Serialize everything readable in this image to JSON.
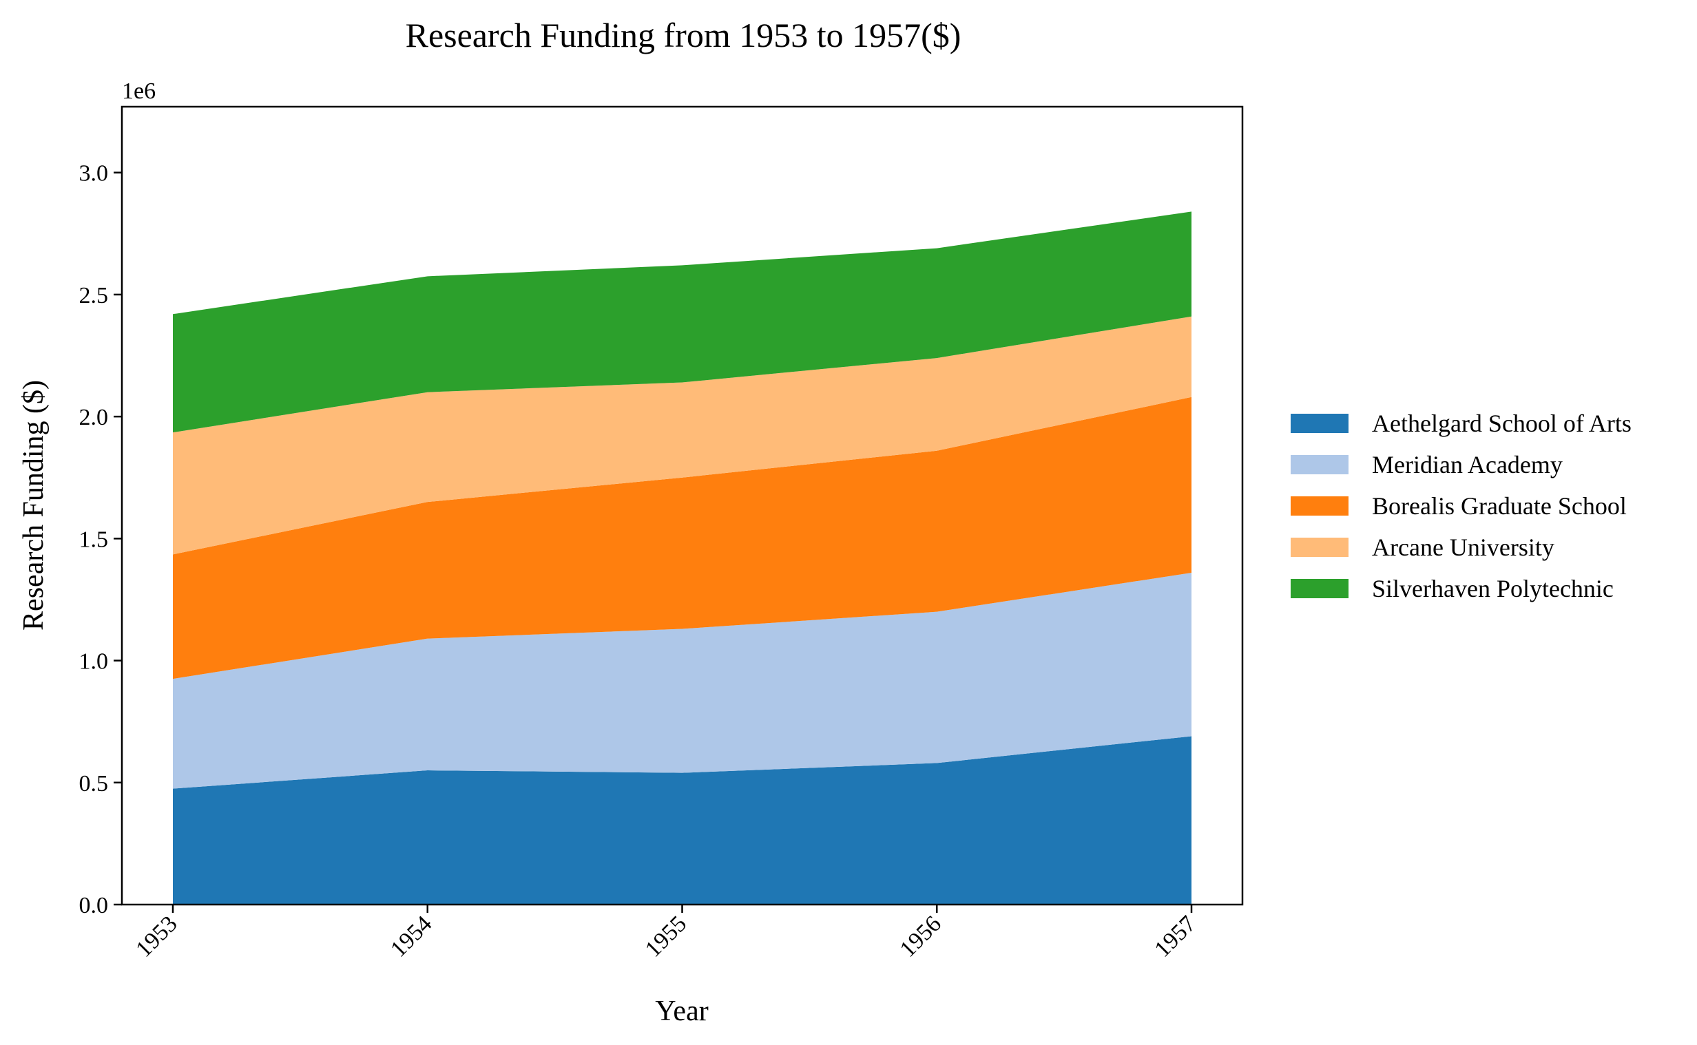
{
  "chart_data": {
    "type": "area",
    "stacked": true,
    "title": "Research Funding from 1953 to 1957($)",
    "xlabel": "Year",
    "ylabel": "Research Funding ($)",
    "y_offset_label": "1e6",
    "x": [
      "1953",
      "1954",
      "1955",
      "1956",
      "1957"
    ],
    "ylim": [
      0,
      3270000
    ],
    "yticks": [
      0,
      500000,
      1000000,
      1500000,
      2000000,
      2500000,
      3000000
    ],
    "ytick_labels": [
      "0.0",
      "0.5",
      "1.0",
      "1.5",
      "2.0",
      "2.5",
      "3.0"
    ],
    "grid": false,
    "legend_position": "right",
    "series": [
      {
        "name": "Aethelgard School of Arts",
        "color": "#1f77b4",
        "values": [
          475000,
          550000,
          540000,
          580000,
          690000
        ]
      },
      {
        "name": "Meridian Academy",
        "color": "#aec7e8",
        "values": [
          450000,
          540000,
          590000,
          620000,
          670000
        ]
      },
      {
        "name": "Borealis Graduate School",
        "color": "#ff7f0e",
        "values": [
          510000,
          560000,
          620000,
          660000,
          720000
        ]
      },
      {
        "name": "Arcane University",
        "color": "#ffbb78",
        "values": [
          500000,
          450000,
          390000,
          380000,
          330000
        ]
      },
      {
        "name": "Silverhaven Polytechnic",
        "color": "#2ca02c",
        "values": [
          485000,
          475000,
          480000,
          450000,
          430000
        ]
      }
    ]
  }
}
